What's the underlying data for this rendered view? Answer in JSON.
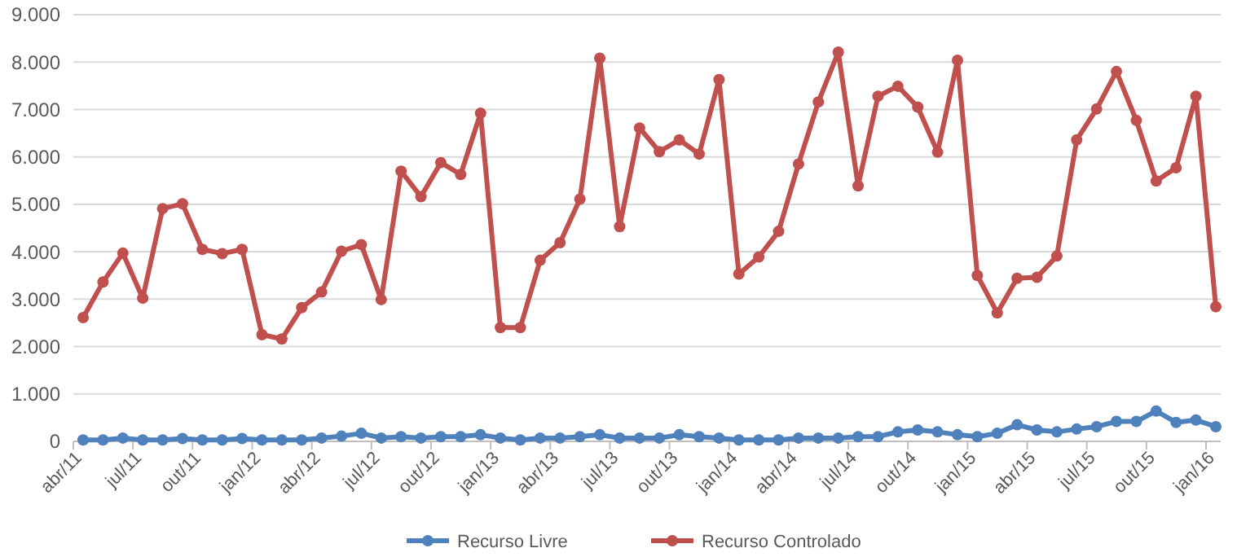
{
  "chart_data": {
    "type": "line",
    "categories": [
      "abr/11",
      null,
      null,
      "jul/11",
      null,
      null,
      "out/11",
      null,
      null,
      "jan/12",
      null,
      null,
      "abr/12",
      null,
      null,
      "jul/12",
      null,
      null,
      "out/12",
      null,
      null,
      "jan/13",
      null,
      null,
      "abr/13",
      null,
      null,
      "jul/13",
      null,
      null,
      "out/13",
      null,
      null,
      "jan/14",
      null,
      null,
      "abr/14",
      null,
      null,
      "jul/14",
      null,
      null,
      "out/14",
      null,
      null,
      "jan/15",
      null,
      null,
      "abr/15",
      null,
      null,
      "jul/15",
      null,
      null,
      "out/15",
      null,
      null,
      "jan/16"
    ],
    "series": [
      {
        "name": "Recurso Livre",
        "color": "#4f81bd",
        "values": [
          30,
          30,
          70,
          30,
          30,
          60,
          30,
          30,
          60,
          30,
          30,
          30,
          70,
          110,
          170,
          70,
          100,
          70,
          100,
          100,
          140,
          70,
          30,
          70,
          70,
          100,
          140,
          70,
          70,
          70,
          140,
          100,
          70,
          30,
          30,
          30,
          70,
          70,
          70,
          100,
          100,
          200,
          240,
          200,
          140,
          100,
          170,
          350,
          240,
          200,
          260,
          310,
          420,
          420,
          640,
          400,
          450,
          310
        ]
      },
      {
        "name": "Recurso Controlado",
        "color": "#c0504d",
        "values": [
          2610,
          3360,
          3970,
          3020,
          4910,
          5010,
          4050,
          3960,
          4050,
          2250,
          2160,
          2820,
          3150,
          4010,
          4150,
          2990,
          5700,
          5160,
          5880,
          5630,
          6920,
          2400,
          2400,
          3820,
          4190,
          5110,
          8080,
          4530,
          6610,
          6110,
          6360,
          6060,
          7630,
          3530,
          3890,
          4430,
          5850,
          7160,
          8210,
          5390,
          7280,
          7490,
          7050,
          6100,
          8040,
          3500,
          2710,
          3440,
          3460,
          3910,
          6360,
          7010,
          7800,
          6770,
          5490,
          5770,
          7280,
          2840
        ]
      }
    ],
    "ylim": [
      0,
      9000
    ],
    "yticks": [
      {
        "value": 0,
        "label": "0"
      },
      {
        "value": 1000,
        "label": "1.000"
      },
      {
        "value": 2000,
        "label": "2.000"
      },
      {
        "value": 3000,
        "label": "3.000"
      },
      {
        "value": 4000,
        "label": "4.000"
      },
      {
        "value": 5000,
        "label": "5.000"
      },
      {
        "value": 6000,
        "label": "6.000"
      },
      {
        "value": 7000,
        "label": "7.000"
      },
      {
        "value": 8000,
        "label": "8.000"
      },
      {
        "value": 9000,
        "label": "9.000"
      }
    ],
    "grid": "y",
    "legend": "bottom",
    "marker": "circle",
    "line_style": "solid"
  }
}
